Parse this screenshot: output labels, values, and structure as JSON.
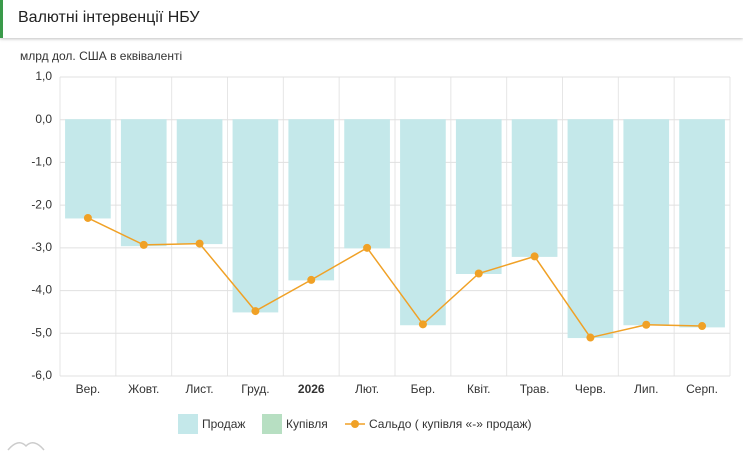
{
  "chart_data": {
    "type": "bar",
    "title": "Валютні інтервенції НБУ",
    "y_label": "млрд дол. США в еквіваленті",
    "categories": [
      "Вер.",
      "Жовт.",
      "Лист.",
      "Груд.",
      "2026",
      "Лют.",
      "Бер.",
      "Квіт.",
      "Трав.",
      "Черв.",
      "Лип.",
      "Серп."
    ],
    "series": [
      {
        "name": "Продаж",
        "type": "bar",
        "color": "#c4e8ea",
        "values": [
          -2.3,
          -2.95,
          -2.9,
          -4.5,
          -3.75,
          -3.0,
          -4.8,
          -3.6,
          -3.2,
          -5.1,
          -4.8,
          -4.85
        ]
      },
      {
        "name": "Купівля",
        "type": "bar",
        "color": "#b7dfc2",
        "values": [
          0,
          0,
          0,
          0,
          0,
          0,
          0,
          0,
          0,
          0,
          0,
          0
        ]
      },
      {
        "name": "Сальдо ( купівля «-» продаж)",
        "type": "line",
        "color": "#f0a126",
        "values": [
          -2.3,
          -2.93,
          -2.9,
          -4.48,
          -3.75,
          -3.0,
          -4.79,
          -3.6,
          -3.2,
          -5.1,
          -4.8,
          -4.83
        ]
      }
    ],
    "ylim": [
      -6,
      1
    ],
    "yticks": [
      {
        "value": 1,
        "label": "1,0"
      },
      {
        "value": 0,
        "label": "0,0"
      },
      {
        "value": -1,
        "label": "-1,0"
      },
      {
        "value": -2,
        "label": "-2,0"
      },
      {
        "value": -3,
        "label": "-3,0"
      },
      {
        "value": -4,
        "label": "-4,0"
      },
      {
        "value": -5,
        "label": "-5,0"
      },
      {
        "value": -6,
        "label": "-6,0"
      }
    ],
    "grid": true
  }
}
